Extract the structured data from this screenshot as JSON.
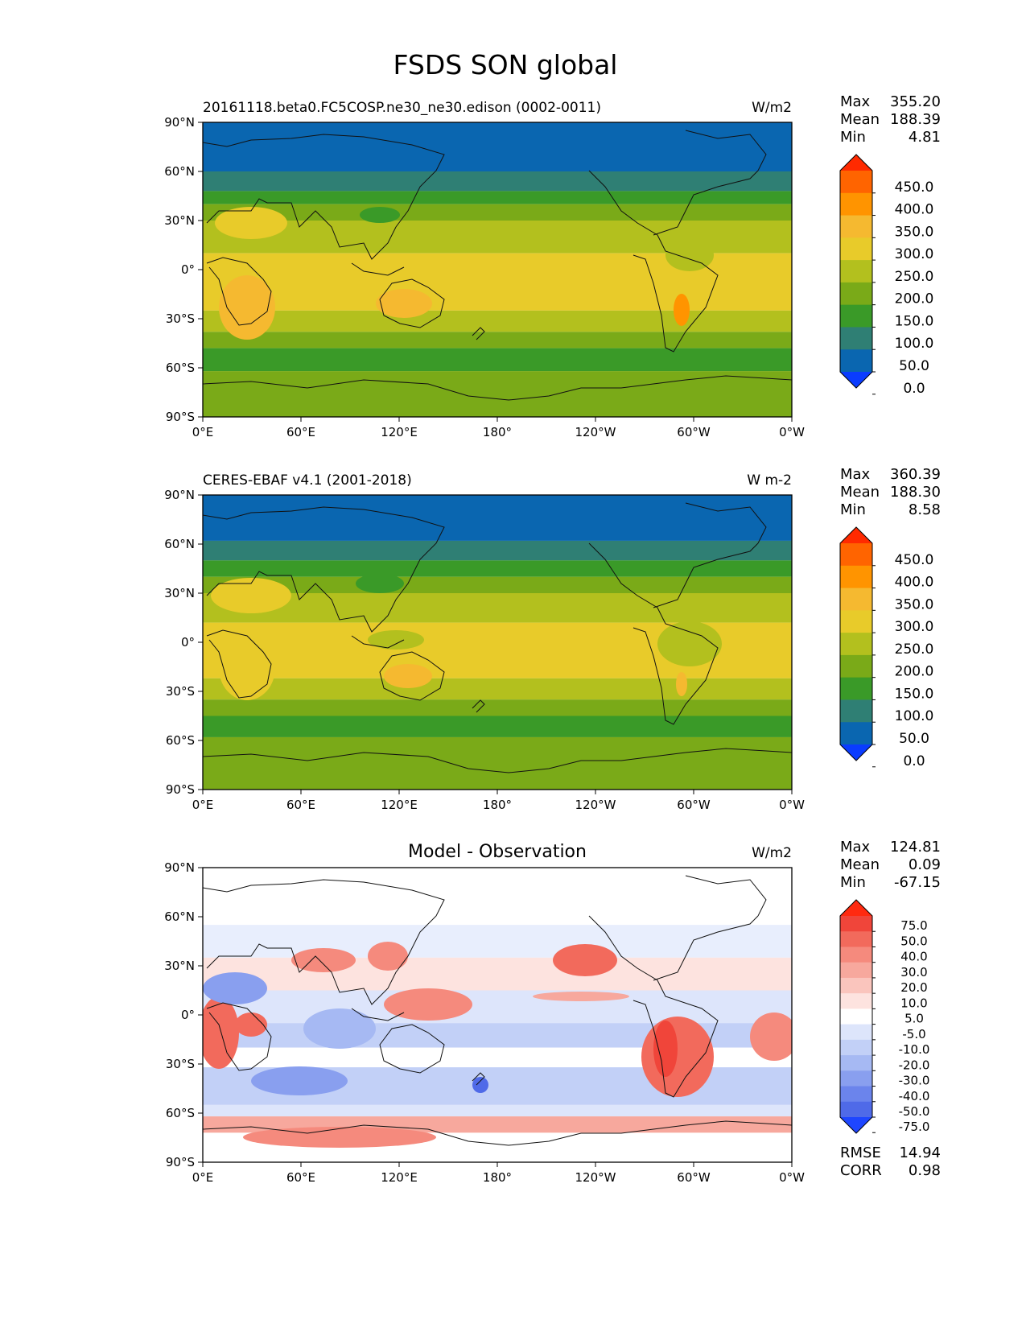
{
  "title": "FSDS SON global",
  "chart_data": [
    {
      "type": "heatmap",
      "title": "20161118.beta0.FC5COSP.ne30_ne30.edison (0002-0011)",
      "units": "W/m2",
      "stats": {
        "max_label": "Max",
        "max": "355.20",
        "mean_label": "Mean",
        "mean": "188.39",
        "min_label": "Min",
        "min": "4.81"
      },
      "x_ticks": [
        "0°E",
        "60°E",
        "120°E",
        "180°",
        "120°W",
        "60°W",
        "0°W"
      ],
      "y_ticks": [
        "90°N",
        "60°N",
        "30°N",
        "0°",
        "30°S",
        "60°S",
        "90°S"
      ],
      "colorbar_levels": [
        "450.0",
        "400.0",
        "350.0",
        "300.0",
        "250.0",
        "200.0",
        "150.0",
        "100.0",
        "50.0",
        "0.0"
      ],
      "colorbar_colors": [
        "#ff2a00",
        "#ff6400",
        "#ff9400",
        "#f5b930",
        "#e8cb2a",
        "#b3c01e",
        "#7aaa18",
        "#3a9a28",
        "#2f7f74",
        "#0a66b0",
        "#0a3cff"
      ],
      "zonal_bands": [
        {
          "lat": [
            60,
            90
          ],
          "color": "#0a66b0"
        },
        {
          "lat": [
            48,
            60
          ],
          "color": "#2f7f74"
        },
        {
          "lat": [
            40,
            48
          ],
          "color": "#3a9a28"
        },
        {
          "lat": [
            30,
            40
          ],
          "color": "#7aaa18"
        },
        {
          "lat": [
            10,
            30
          ],
          "color": "#b3c01e"
        },
        {
          "lat": [
            -25,
            10
          ],
          "color": "#e8cb2a"
        },
        {
          "lat": [
            -38,
            -25
          ],
          "color": "#b3c01e"
        },
        {
          "lat": [
            -48,
            -38
          ],
          "color": "#7aaa18"
        },
        {
          "lat": [
            -62,
            -48
          ],
          "color": "#3a9a28"
        },
        {
          "lat": [
            -90,
            -62
          ],
          "color": "#7aaa18"
        }
      ]
    },
    {
      "type": "heatmap",
      "title": "CERES-EBAF v4.1 (2001-2018)",
      "units": "W m-2",
      "stats": {
        "max_label": "Max",
        "max": "360.39",
        "mean_label": "Mean",
        "mean": "188.30",
        "min_label": "Min",
        "min": "8.58"
      },
      "x_ticks": [
        "0°E",
        "60°E",
        "120°E",
        "180°",
        "120°W",
        "60°W",
        "0°W"
      ],
      "y_ticks": [
        "90°N",
        "60°N",
        "30°N",
        "0°",
        "30°S",
        "60°S",
        "90°S"
      ],
      "colorbar_levels": [
        "450.0",
        "400.0",
        "350.0",
        "300.0",
        "250.0",
        "200.0",
        "150.0",
        "100.0",
        "50.0",
        "0.0"
      ],
      "colorbar_colors": [
        "#ff2a00",
        "#ff6400",
        "#ff9400",
        "#f5b930",
        "#e8cb2a",
        "#b3c01e",
        "#7aaa18",
        "#3a9a28",
        "#2f7f74",
        "#0a66b0",
        "#0a3cff"
      ],
      "zonal_bands": [
        {
          "lat": [
            62,
            90
          ],
          "color": "#0a66b0"
        },
        {
          "lat": [
            50,
            62
          ],
          "color": "#2f7f74"
        },
        {
          "lat": [
            40,
            50
          ],
          "color": "#3a9a28"
        },
        {
          "lat": [
            30,
            40
          ],
          "color": "#7aaa18"
        },
        {
          "lat": [
            12,
            30
          ],
          "color": "#b3c01e"
        },
        {
          "lat": [
            -22,
            12
          ],
          "color": "#e8cb2a"
        },
        {
          "lat": [
            -35,
            -22
          ],
          "color": "#b3c01e"
        },
        {
          "lat": [
            -45,
            -35
          ],
          "color": "#7aaa18"
        },
        {
          "lat": [
            -58,
            -45
          ],
          "color": "#3a9a28"
        },
        {
          "lat": [
            -90,
            -58
          ],
          "color": "#7aaa18"
        }
      ]
    },
    {
      "type": "heatmap",
      "title": "Model - Observation",
      "units": "W/m2",
      "stats": {
        "max_label": "Max",
        "max": "124.81",
        "mean_label": "Mean",
        "mean": "0.09",
        "min_label": "Min",
        "min": "-67.15"
      },
      "extra_stats": {
        "rmse_label": "RMSE",
        "rmse": "14.94",
        "corr_label": "CORR",
        "corr": "0.98"
      },
      "x_ticks": [
        "0°E",
        "60°E",
        "120°E",
        "180°",
        "120°W",
        "60°W",
        "0°W"
      ],
      "y_ticks": [
        "90°N",
        "60°N",
        "30°N",
        "0°",
        "30°S",
        "60°S",
        "90°S"
      ],
      "colorbar_levels": [
        "75.0",
        "50.0",
        "40.0",
        "30.0",
        "20.0",
        "10.0",
        "5.0",
        "-5.0",
        "-10.0",
        "-20.0",
        "-30.0",
        "-40.0",
        "-50.0",
        "-75.0"
      ],
      "colorbar_colors": [
        "#ff2a10",
        "#f0453a",
        "#f26a5c",
        "#f58a7d",
        "#f7a89d",
        "#fac5bd",
        "#fde3df",
        "#ffffff",
        "#dde5fb",
        "#c2d0f7",
        "#a6b9f3",
        "#899fef",
        "#6b84ec",
        "#4f6ae8",
        "#1e46ff"
      ],
      "zonal_bands": [
        {
          "lat": [
            55,
            90
          ],
          "color": "#ffffff"
        },
        {
          "lat": [
            35,
            55
          ],
          "color": "#e8eefd"
        },
        {
          "lat": [
            15,
            35
          ],
          "color": "#fde3df"
        },
        {
          "lat": [
            -5,
            15
          ],
          "color": "#dde5fb"
        },
        {
          "lat": [
            -20,
            -5
          ],
          "color": "#c2d0f7"
        },
        {
          "lat": [
            -32,
            -20
          ],
          "color": "#ffffff"
        },
        {
          "lat": [
            -55,
            -32
          ],
          "color": "#c2d0f7"
        },
        {
          "lat": [
            -62,
            -55
          ],
          "color": "#dde5fb"
        },
        {
          "lat": [
            -72,
            -62
          ],
          "color": "#f7a89d"
        },
        {
          "lat": [
            -90,
            -72
          ],
          "color": "#ffffff"
        }
      ]
    }
  ]
}
